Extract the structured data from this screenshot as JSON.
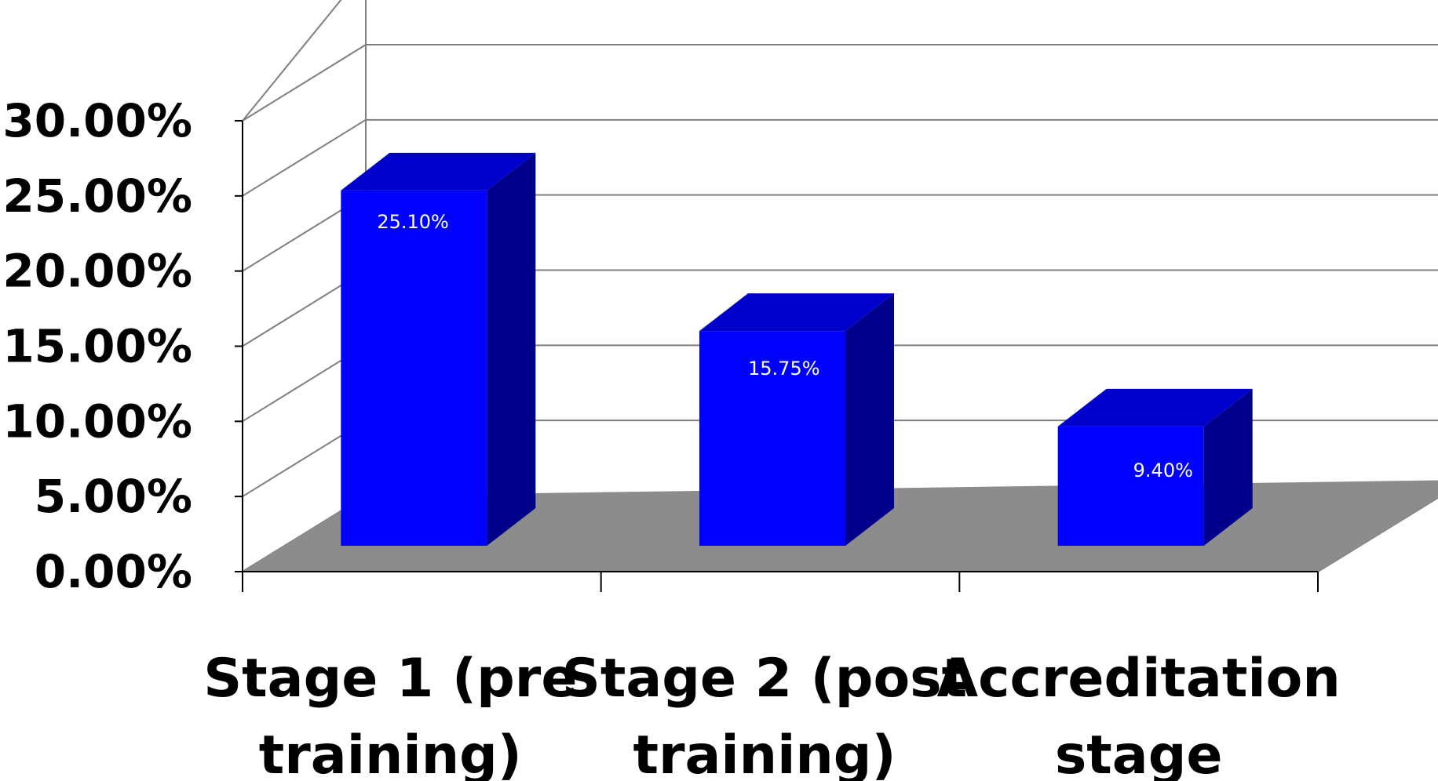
{
  "chart_data": {
    "type": "bar",
    "categories": [
      [
        "Stage 1 (pre",
        "training)"
      ],
      [
        "Stage 2 (post",
        "training)"
      ],
      [
        "Accreditation",
        "stage"
      ]
    ],
    "values": [
      25.1,
      15.75,
      9.4
    ],
    "data_labels": [
      "25.10%",
      "15.75%",
      "9.40%"
    ],
    "y_ticks": [
      "0.00%",
      "5.00%",
      "10.00%",
      "15.00%",
      "20.00%",
      "25.00%",
      "30.00%"
    ],
    "ylim": [
      0,
      30
    ],
    "y_step": 5,
    "title": "",
    "xlabel": "",
    "ylabel": "",
    "grid": true,
    "style": "3d",
    "colors": {
      "bar_front": "#0000ff",
      "bar_side": "#00008b",
      "bar_top": "#0000cd",
      "floor": "#8c8c8c",
      "gridline": "#7f7f7f",
      "axis": "#000000"
    }
  }
}
